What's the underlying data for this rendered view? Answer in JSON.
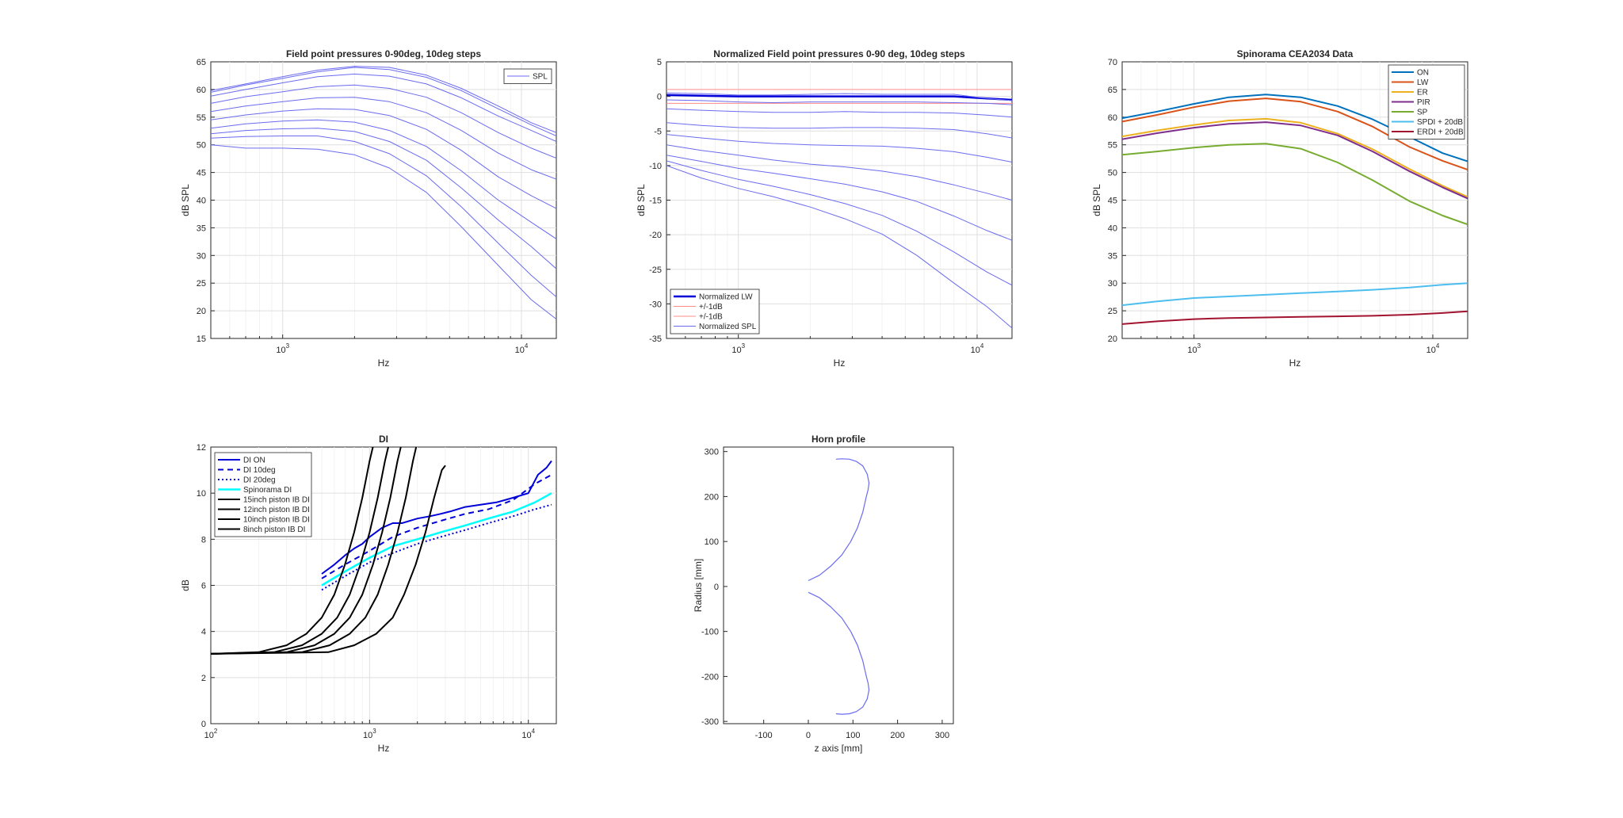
{
  "chart_data": [
    {
      "id": "p1",
      "type": "line",
      "title": "Field point pressures 0-90deg, 10deg steps",
      "xlabel": "Hz",
      "ylabel": "dB SPL",
      "xscale": "log",
      "xlim": [
        500,
        14000
      ],
      "ylim": [
        15,
        65
      ],
      "yticks": [
        15,
        20,
        25,
        30,
        35,
        40,
        45,
        50,
        55,
        60,
        65
      ],
      "xticks": [
        1000,
        10000
      ],
      "xticklabels": [
        "10^3",
        "10^4"
      ],
      "grid": true,
      "legend_position": "top-right",
      "x": [
        500,
        700,
        1000,
        1400,
        2000,
        2800,
        4000,
        5600,
        8000,
        11000,
        14000
      ],
      "series": [
        {
          "name": "SPL",
          "color": "#6b6bf0",
          "width": 1,
          "values": [
            59.8,
            61.0,
            62.3,
            63.5,
            64.2,
            64.0,
            62.6,
            60.2,
            57.0,
            54.0,
            52.2
          ]
        },
        {
          "name": "",
          "color": "#6b6bf0",
          "width": 1,
          "values": [
            59.5,
            60.8,
            62.0,
            63.2,
            64.0,
            63.6,
            62.2,
            59.8,
            56.5,
            53.6,
            51.6
          ]
        },
        {
          "name": "",
          "color": "#6b6bf0",
          "width": 1,
          "values": [
            58.8,
            60.0,
            61.2,
            62.3,
            62.8,
            62.4,
            61.0,
            58.5,
            55.2,
            52.6,
            50.6
          ]
        },
        {
          "name": "",
          "color": "#6b6bf0",
          "width": 1,
          "values": [
            57.5,
            58.7,
            59.6,
            60.5,
            60.8,
            60.2,
            58.6,
            55.8,
            52.2,
            49.4,
            47.6
          ]
        },
        {
          "name": "",
          "color": "#6b6bf0",
          "width": 1,
          "values": [
            56.0,
            57.0,
            57.8,
            58.5,
            58.6,
            57.8,
            55.8,
            52.6,
            48.5,
            45.5,
            43.8
          ]
        },
        {
          "name": "",
          "color": "#6b6bf0",
          "width": 1,
          "values": [
            54.5,
            55.4,
            56.1,
            56.5,
            56.4,
            55.3,
            52.8,
            49.0,
            44.2,
            40.8,
            38.5
          ]
        },
        {
          "name": "",
          "color": "#6b6bf0",
          "width": 1,
          "values": [
            53.0,
            53.8,
            54.3,
            54.5,
            54.1,
            52.6,
            49.7,
            45.3,
            40.0,
            36.0,
            33.0
          ]
        },
        {
          "name": "",
          "color": "#6b6bf0",
          "width": 1,
          "values": [
            52.0,
            52.6,
            52.9,
            53.0,
            52.4,
            50.6,
            47.2,
            42.2,
            36.4,
            31.6,
            27.6
          ]
        },
        {
          "name": "",
          "color": "#6b6bf0",
          "width": 1,
          "values": [
            51.2,
            51.5,
            51.6,
            51.6,
            50.6,
            48.4,
            44.4,
            38.8,
            32.2,
            26.4,
            22.5
          ]
        },
        {
          "name": "",
          "color": "#6b6bf0",
          "width": 1,
          "values": [
            50.0,
            49.4,
            49.4,
            49.2,
            48.2,
            45.8,
            41.4,
            35.2,
            28.2,
            22.0,
            18.5
          ]
        }
      ]
    },
    {
      "id": "p2",
      "type": "line",
      "title": "Normalized Field point pressures 0-90 deg, 10deg steps",
      "xlabel": "Hz",
      "ylabel": "dB SPL",
      "xscale": "log",
      "xlim": [
        500,
        14000
      ],
      "ylim": [
        -35,
        5
      ],
      "yticks": [
        -35,
        -30,
        -25,
        -20,
        -15,
        -10,
        -5,
        0,
        5
      ],
      "xticks": [
        1000,
        10000
      ],
      "xticklabels": [
        "10^3",
        "10^4"
      ],
      "grid": true,
      "legend_position": "bottom-left",
      "x": [
        500,
        700,
        1000,
        1400,
        2000,
        2800,
        4000,
        5600,
        8000,
        11000,
        14000
      ],
      "series": [
        {
          "name": "Normalized LW",
          "color": "#0000d8",
          "width": 2.5,
          "values": [
            0.2,
            0.1,
            0.0,
            0.0,
            0.0,
            0.0,
            0.0,
            0.0,
            0.0,
            -0.3,
            -0.5
          ]
        },
        {
          "name": "+/-1dB",
          "color": "#ff8c8c",
          "width": 1,
          "values": [
            1,
            1,
            1,
            1,
            1,
            1,
            1,
            1,
            1,
            1,
            1
          ]
        },
        {
          "name": "+/-1dB",
          "color": "#ff8c8c",
          "width": 1,
          "values": [
            -1,
            -1,
            -1,
            -1,
            -1,
            -1,
            -1,
            -1,
            -1,
            -1,
            -1
          ]
        },
        {
          "name": "Normalized SPL",
          "color": "#6b6bf0",
          "width": 1,
          "values": [
            0.5,
            0.4,
            0.2,
            0.2,
            0.3,
            0.4,
            0.3,
            0.3,
            0.3,
            -0.3,
            -0.6
          ]
        },
        {
          "name": "",
          "color": "#6b6bf0",
          "width": 1,
          "values": [
            -0.5,
            -0.6,
            -0.8,
            -0.9,
            -0.8,
            -0.8,
            -0.8,
            -0.8,
            -0.9,
            -1.0,
            -1.2
          ]
        },
        {
          "name": "",
          "color": "#6b6bf0",
          "width": 1,
          "values": [
            -1.8,
            -2.0,
            -2.2,
            -2.3,
            -2.3,
            -2.2,
            -2.3,
            -2.3,
            -2.4,
            -2.7,
            -3.0
          ]
        },
        {
          "name": "",
          "color": "#6b6bf0",
          "width": 1,
          "values": [
            -3.8,
            -4.2,
            -4.5,
            -4.6,
            -4.6,
            -4.5,
            -4.5,
            -4.6,
            -4.8,
            -5.4,
            -6.0
          ]
        },
        {
          "name": "",
          "color": "#6b6bf0",
          "width": 1,
          "values": [
            -5.5,
            -6.0,
            -6.5,
            -6.8,
            -7.0,
            -7.1,
            -7.2,
            -7.5,
            -8.0,
            -8.8,
            -9.5
          ]
        },
        {
          "name": "",
          "color": "#6b6bf0",
          "width": 1,
          "values": [
            -7.0,
            -7.8,
            -8.5,
            -9.2,
            -9.8,
            -10.2,
            -10.8,
            -11.6,
            -12.8,
            -14.0,
            -15.0
          ]
        },
        {
          "name": "",
          "color": "#6b6bf0",
          "width": 1,
          "values": [
            -8.5,
            -9.4,
            -10.4,
            -11.1,
            -11.9,
            -12.7,
            -13.8,
            -15.2,
            -17.3,
            -19.4,
            -20.8
          ]
        },
        {
          "name": "",
          "color": "#6b6bf0",
          "width": 1,
          "values": [
            -9.3,
            -10.7,
            -12.0,
            -13.0,
            -14.2,
            -15.5,
            -17.2,
            -19.5,
            -22.5,
            -25.4,
            -27.3
          ]
        },
        {
          "name": "",
          "color": "#6b6bf0",
          "width": 1,
          "values": [
            -10.0,
            -11.8,
            -13.3,
            -14.5,
            -16.0,
            -17.7,
            -19.9,
            -23.0,
            -27.0,
            -30.4,
            -33.5
          ]
        }
      ]
    },
    {
      "id": "p3",
      "type": "line",
      "title": "Spinorama CEA2034 Data",
      "xlabel": "Hz",
      "ylabel": "dB SPL",
      "xscale": "log",
      "xlim": [
        500,
        14000
      ],
      "ylim": [
        20,
        70
      ],
      "yticks": [
        20,
        25,
        30,
        35,
        40,
        45,
        50,
        55,
        60,
        65,
        70
      ],
      "xticks": [
        1000,
        10000
      ],
      "xticklabels": [
        "10^3",
        "10^4"
      ],
      "grid": true,
      "legend_position": "top-right",
      "x": [
        500,
        700,
        1000,
        1400,
        2000,
        2800,
        4000,
        5600,
        8000,
        11000,
        14000
      ],
      "series": [
        {
          "name": "ON",
          "color": "#0072bd",
          "width": 2,
          "values": [
            59.8,
            61.0,
            62.4,
            63.6,
            64.1,
            63.6,
            62.0,
            59.6,
            56.4,
            53.5,
            52.0
          ]
        },
        {
          "name": "LW",
          "color": "#d95319",
          "width": 2,
          "values": [
            59.2,
            60.4,
            61.8,
            62.9,
            63.4,
            62.8,
            61.0,
            58.3,
            54.6,
            52.1,
            50.5
          ]
        },
        {
          "name": "ER",
          "color": "#edb120",
          "width": 2,
          "values": [
            56.5,
            57.6,
            58.6,
            59.4,
            59.7,
            59.0,
            57.0,
            54.2,
            50.6,
            47.6,
            45.6
          ]
        },
        {
          "name": "PIR",
          "color": "#7e2f8e",
          "width": 2,
          "values": [
            56.0,
            57.1,
            58.1,
            58.8,
            59.1,
            58.5,
            56.7,
            53.8,
            50.2,
            47.3,
            45.3
          ]
        },
        {
          "name": "SP",
          "color": "#77ac30",
          "width": 2,
          "values": [
            53.2,
            53.8,
            54.5,
            55.0,
            55.2,
            54.3,
            51.8,
            48.6,
            44.8,
            42.2,
            40.6
          ]
        },
        {
          "name": "SPDI + 20dB",
          "color": "#4dbeee",
          "width": 2,
          "values": [
            26.0,
            26.7,
            27.3,
            27.6,
            27.9,
            28.2,
            28.5,
            28.8,
            29.2,
            29.7,
            30.0
          ]
        },
        {
          "name": "ERDI + 20dB",
          "color": "#a2142f",
          "width": 2,
          "values": [
            22.6,
            23.1,
            23.5,
            23.7,
            23.8,
            23.9,
            24.0,
            24.1,
            24.3,
            24.6,
            24.9
          ]
        }
      ]
    },
    {
      "id": "p4",
      "type": "line",
      "title": "DI",
      "xlabel": "Hz",
      "ylabel": "dB",
      "xscale": "log",
      "xlim": [
        100,
        15000
      ],
      "ylim": [
        0,
        12
      ],
      "yticks": [
        0,
        2,
        4,
        6,
        8,
        10,
        12
      ],
      "xticks": [
        100,
        1000,
        10000
      ],
      "xticklabels": [
        "10^2",
        "10^3",
        "10^4"
      ],
      "grid": true,
      "legend_position": "top-left",
      "series": [
        {
          "name": "DI ON",
          "color": "#0000d8",
          "width": 2,
          "dash": "",
          "x": [
            500,
            600,
            700,
            800,
            900,
            1000,
            1200,
            1400,
            1600,
            2000,
            2400,
            2800,
            3200,
            4000,
            5000,
            6300,
            8000,
            10000,
            11500,
            13000,
            14000
          ],
          "values": [
            6.5,
            6.9,
            7.3,
            7.6,
            7.8,
            8.1,
            8.5,
            8.7,
            8.7,
            8.9,
            9.0,
            9.1,
            9.2,
            9.4,
            9.5,
            9.6,
            9.8,
            10.0,
            10.8,
            11.1,
            11.4
          ]
        },
        {
          "name": "DI 10deg",
          "color": "#0000d8",
          "width": 2,
          "dash": "7,5",
          "x": [
            500,
            700,
            1000,
            1400,
            2000,
            2800,
            4000,
            5600,
            8000,
            11000,
            14000
          ],
          "values": [
            6.3,
            6.9,
            7.5,
            8.1,
            8.5,
            8.8,
            9.1,
            9.3,
            9.7,
            10.4,
            10.8
          ]
        },
        {
          "name": "DI 20deg",
          "color": "#0000d8",
          "width": 2,
          "dash": "2,3",
          "x": [
            500,
            700,
            1000,
            1400,
            2000,
            2800,
            4000,
            5600,
            8000,
            11000,
            14000
          ],
          "values": [
            5.8,
            6.4,
            7.0,
            7.4,
            7.8,
            8.1,
            8.4,
            8.7,
            9.0,
            9.3,
            9.5
          ]
        },
        {
          "name": "Spinorama DI",
          "color": "#00ffff",
          "width": 2.5,
          "dash": "",
          "x": [
            500,
            700,
            1000,
            1400,
            2000,
            2800,
            4000,
            5600,
            8000,
            11000,
            14000
          ],
          "values": [
            6.0,
            6.6,
            7.2,
            7.7,
            8.0,
            8.3,
            8.6,
            8.9,
            9.2,
            9.6,
            10.0
          ]
        },
        {
          "name": "15inch piston IB DI",
          "color": "#000000",
          "width": 2,
          "dash": "",
          "x": [
            100,
            200,
            300,
            400,
            500,
            600,
            700,
            800,
            900,
            1000,
            1100
          ],
          "values": [
            3.03,
            3.1,
            3.4,
            3.9,
            4.6,
            5.6,
            6.9,
            8.3,
            9.8,
            11.4,
            12.6
          ]
        },
        {
          "name": "12inch piston IB DI",
          "color": "#000000",
          "width": 2,
          "dash": "",
          "x": [
            100,
            250,
            375,
            500,
            625,
            750,
            875,
            1000,
            1125,
            1250,
            1375
          ],
          "values": [
            3.03,
            3.1,
            3.4,
            3.9,
            4.6,
            5.6,
            6.9,
            8.3,
            9.8,
            11.4,
            12.6
          ]
        },
        {
          "name": "10inch piston IB DI",
          "color": "#000000",
          "width": 2,
          "dash": "",
          "x": [
            100,
            300,
            450,
            600,
            750,
            900,
            1050,
            1200,
            1350,
            1500,
            1650
          ],
          "values": [
            3.03,
            3.1,
            3.4,
            3.9,
            4.6,
            5.6,
            6.9,
            8.3,
            9.8,
            11.4,
            12.6
          ]
        },
        {
          "name": "8inch piston IB DI",
          "color": "#000000",
          "width": 2,
          "dash": "",
          "x": [
            100,
            375,
            560,
            750,
            940,
            1125,
            1310,
            1500,
            1690,
            1875,
            2060
          ],
          "values": [
            3.03,
            3.1,
            3.4,
            3.9,
            4.6,
            5.6,
            6.9,
            8.3,
            9.8,
            11.4,
            12.6
          ]
        },
        {
          "name": "",
          "color": "#000000",
          "width": 2,
          "dash": "",
          "x": [
            100,
            550,
            800,
            1100,
            1400,
            1650,
            1950,
            2250,
            2550,
            2850,
            3000
          ],
          "values": [
            3.03,
            3.1,
            3.4,
            3.9,
            4.6,
            5.6,
            6.9,
            8.3,
            9.8,
            11.0,
            11.2
          ]
        }
      ]
    },
    {
      "id": "p5",
      "type": "line",
      "title": "Horn profile",
      "xlabel": "z axis [mm]",
      "ylabel": "Radius [mm]",
      "xscale": "linear",
      "xlim": [
        -190,
        325
      ],
      "ylim": [
        -305,
        310
      ],
      "yticks": [
        -300,
        -200,
        -100,
        0,
        100,
        200,
        300
      ],
      "xticks": [
        -100,
        0,
        100,
        200,
        300
      ],
      "grid": false,
      "series": [
        {
          "name": "",
          "color": "#6b6bf0",
          "width": 1.2,
          "x": [
            0,
            25,
            50,
            75,
            95,
            110,
            122,
            130,
            134,
            136,
            132,
            122,
            108,
            92,
            75,
            62
          ],
          "values": [
            13,
            25,
            45,
            70,
            100,
            130,
            165,
            200,
            215,
            230,
            250,
            268,
            278,
            283,
            284,
            283
          ]
        },
        {
          "name": "",
          "color": "#6b6bf0",
          "width": 1.2,
          "x": [
            0,
            25,
            50,
            75,
            95,
            110,
            122,
            130,
            134,
            136,
            132,
            122,
            108,
            92,
            75,
            62
          ],
          "values": [
            -13,
            -25,
            -45,
            -70,
            -100,
            -130,
            -165,
            -200,
            -215,
            -230,
            -250,
            -268,
            -278,
            -283,
            -284,
            -283
          ]
        }
      ]
    }
  ]
}
